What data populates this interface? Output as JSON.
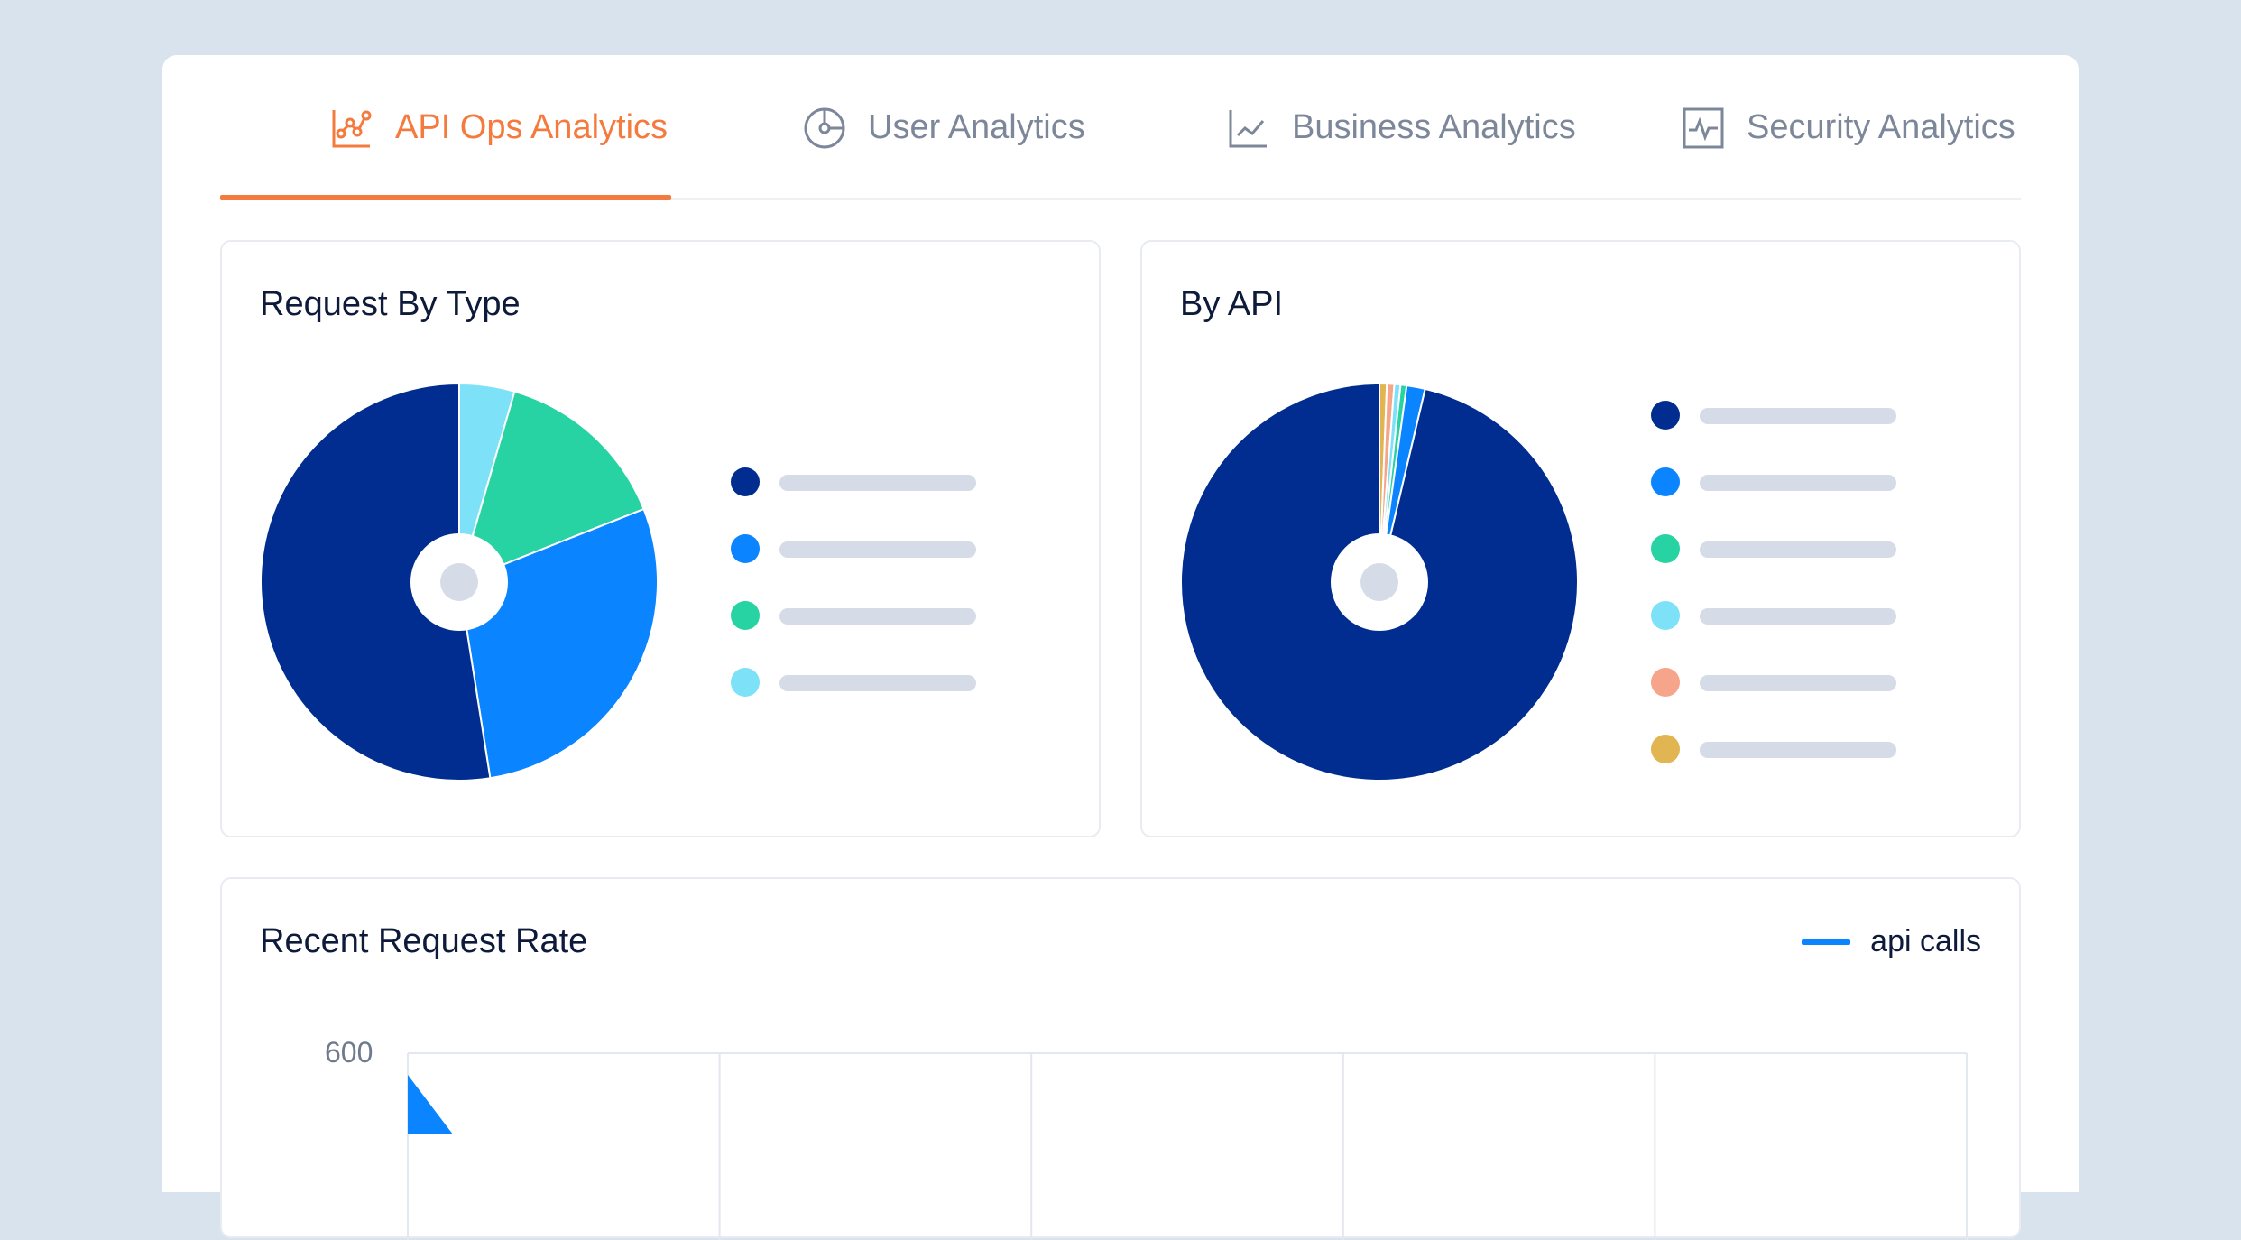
{
  "tabs": [
    {
      "label": "API Ops Analytics",
      "icon": "chart-nodes-icon",
      "active": true
    },
    {
      "label": "User Analytics",
      "icon": "pie-gauge-icon",
      "active": false
    },
    {
      "label": "Business Analytics",
      "icon": "line-chart-icon",
      "active": false
    },
    {
      "label": "Security Analytics",
      "icon": "pulse-icon",
      "active": false
    }
  ],
  "colors": {
    "accent": "#f47a3e",
    "navy": "#002d8f",
    "blue": "#0a84ff",
    "green": "#27d3a2",
    "cyan": "#7de1f7",
    "salmon": "#f6a58a",
    "gold": "#e0b552",
    "placeholder": "#d5dbe7"
  },
  "cards": {
    "request_by_type": {
      "title": "Request By Type"
    },
    "by_api": {
      "title": "By API"
    },
    "recent_rate": {
      "title": "Recent Request Rate",
      "legend_label": "api calls",
      "y_tick_top": "600"
    }
  },
  "chart_data": [
    {
      "type": "pie",
      "title": "Request By Type",
      "values": [
        4.5,
        14.5,
        28.5,
        52.5
      ],
      "colors": [
        "#7de1f7",
        "#27d3a2",
        "#0a84ff",
        "#002d8f"
      ],
      "legend": [
        "#002d8f",
        "#0a84ff",
        "#27d3a2",
        "#7de1f7"
      ]
    },
    {
      "type": "pie",
      "title": "By API",
      "values": [
        0.6,
        0.6,
        0.5,
        0.5,
        1.5,
        96.3
      ],
      "colors": [
        "#e0b552",
        "#f6a58a",
        "#7de1f7",
        "#27d3a2",
        "#0a84ff",
        "#002d8f"
      ],
      "legend": [
        "#002d8f",
        "#0a84ff",
        "#27d3a2",
        "#7de1f7",
        "#f6a58a",
        "#e0b552"
      ]
    },
    {
      "type": "area",
      "title": "Recent Request Rate",
      "series": [
        {
          "name": "api calls",
          "color": "#0a84ff"
        }
      ],
      "y_ticks": [
        "600"
      ],
      "grid": true
    }
  ]
}
